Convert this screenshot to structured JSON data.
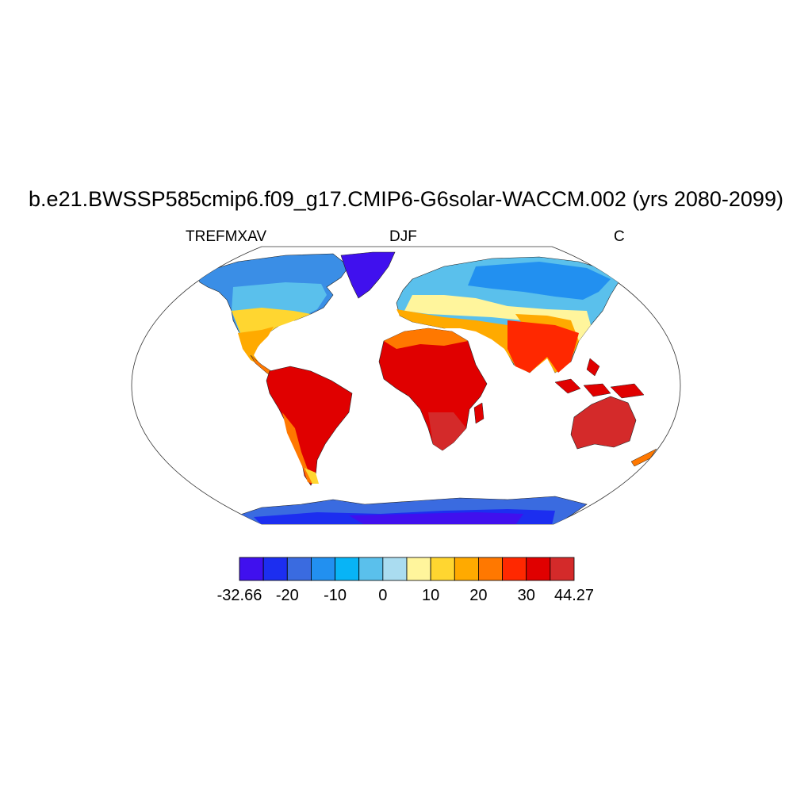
{
  "title": "b.e21.BWSSP585cmip6.f09_g17.CMIP6-G6solar-WACCM.002 (yrs 2080-2099)",
  "subtitle_left": "TREFMXAV",
  "subtitle_center": "DJF",
  "subtitle_right": "C",
  "colorbar": {
    "colors": [
      "#4010ee",
      "#1c2ef0",
      "#3a6be0",
      "#2290f0",
      "#08b4f6",
      "#5ac0ec",
      "#aadcf0",
      "#fff59c",
      "#ffd630",
      "#ffaa00",
      "#ff7800",
      "#ff2800",
      "#e00000",
      "#d42a2a"
    ],
    "labels": [
      "-32.66",
      "-20",
      "-10",
      "0",
      "10",
      "20",
      "30",
      "44.27"
    ]
  }
}
